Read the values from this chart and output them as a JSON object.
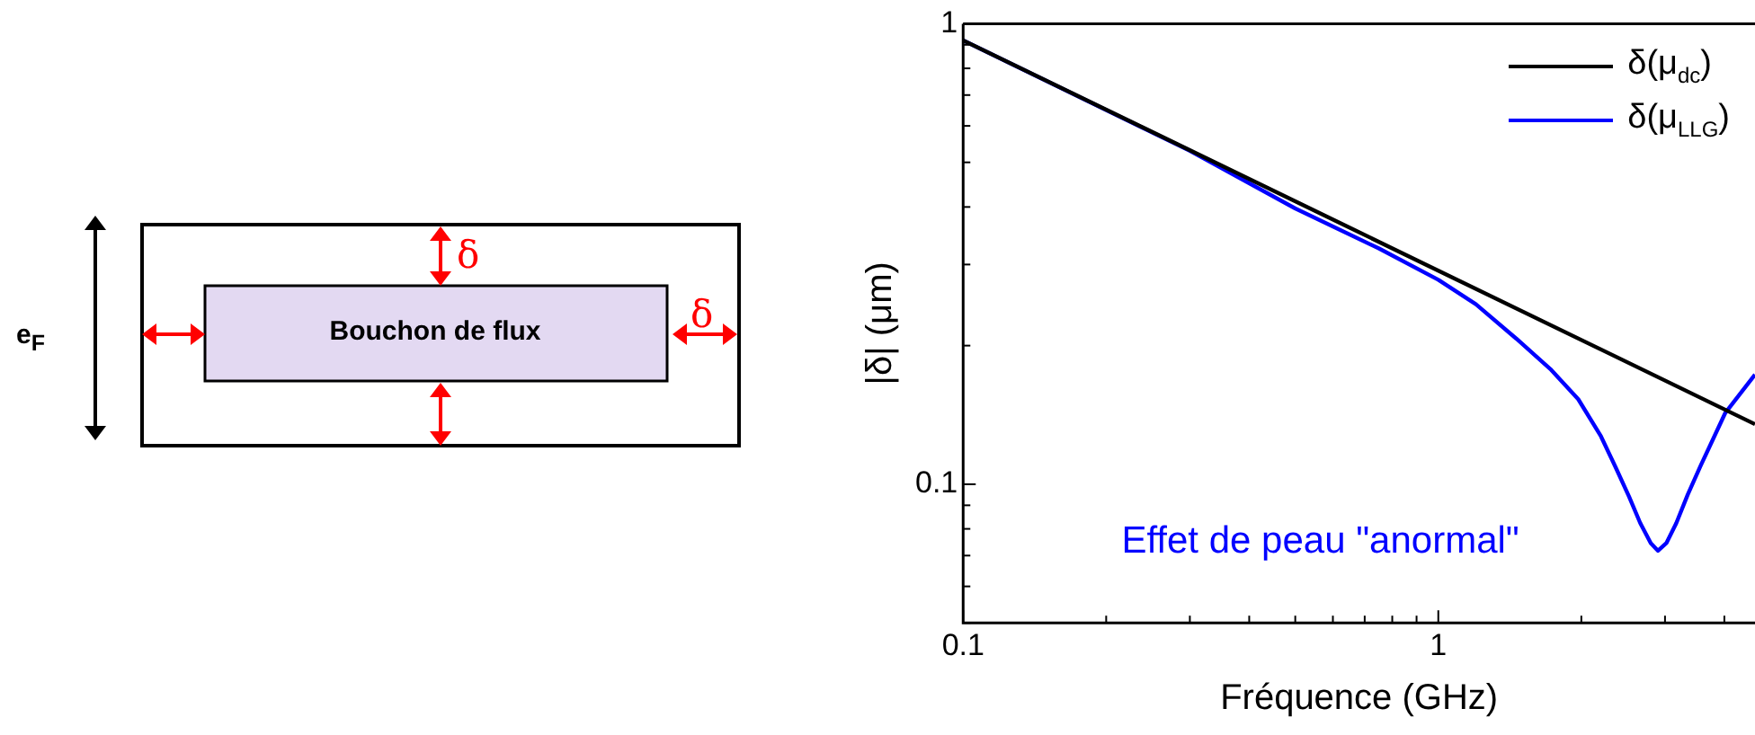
{
  "chart_data": {
    "type": "line",
    "xlabel": "Fréquence (GHz)",
    "ylabel": "|δ| (μm)",
    "log": "xy",
    "xlim": [
      0.1,
      4.64
    ],
    "ylim": [
      0.05,
      1
    ],
    "xticks": [
      0.1,
      {
        "value": 0.2,
        "label": null
      },
      {
        "value": 0.3,
        "label": null
      },
      {
        "value": 0.4,
        "label": null
      },
      {
        "value": 0.5,
        "label": null
      },
      {
        "value": 0.6,
        "label": null
      },
      {
        "value": 0.7,
        "label": null
      },
      {
        "value": 0.8,
        "label": null
      },
      {
        "value": 0.9,
        "label": null
      },
      1,
      {
        "value": 2,
        "label": null
      },
      {
        "value": 3,
        "label": null
      },
      {
        "value": 4,
        "label": null
      }
    ],
    "yticks": [
      {
        "value": 0.05,
        "label": null
      },
      {
        "value": 0.06,
        "label": null
      },
      {
        "value": 0.07,
        "label": null
      },
      {
        "value": 0.08,
        "label": null
      },
      {
        "value": 0.09,
        "label": null
      },
      0.1,
      {
        "value": 0.2,
        "label": null
      },
      {
        "value": 0.3,
        "label": null
      },
      {
        "value": 0.4,
        "label": null
      },
      {
        "value": 0.5,
        "label": null
      },
      {
        "value": 0.6,
        "label": null
      },
      {
        "value": 0.7,
        "label": null
      },
      {
        "value": 0.8,
        "label": null
      },
      {
        "value": 0.9,
        "label": null
      },
      1
    ],
    "grid": false,
    "legend": "top right",
    "series": [
      {
        "name": "δ(μ$_{dc}$)",
        "color": "#000000",
        "x": [
          0.1,
          1,
          4.64
        ],
        "values": [
          0.92,
          0.291,
          0.135
        ]
      },
      {
        "name": "δ(μ$_{LLG}$)",
        "color": "#0000ff",
        "x": [
          0.1,
          0.3,
          0.5,
          0.75,
          1,
          1.2,
          1.46,
          1.72,
          1.97,
          2.2,
          2.36,
          2.52,
          2.66,
          2.8,
          2.9,
          3.02,
          3.17,
          3.35,
          3.57,
          4.02,
          4.64
        ],
        "values": [
          0.92,
          0.53,
          0.397,
          0.325,
          0.278,
          0.246,
          0.207,
          0.178,
          0.153,
          0.127,
          0.109,
          0.094,
          0.0824,
          0.0745,
          0.0717,
          0.0745,
          0.0824,
          0.095,
          0.11,
          0.143,
          0.173
        ]
      }
    ],
    "annotations": [
      "Effet de peau \"anormal\"",
      "Bouchon de flux",
      "e$_{F}$",
      "δ",
      "δ"
    ]
  }
}
